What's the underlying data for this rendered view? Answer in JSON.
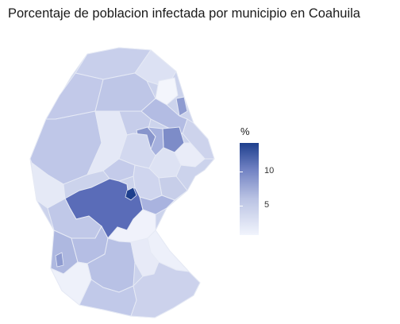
{
  "title": "Porcentaje de poblacion infectada por municipio en Coahuila",
  "legend": {
    "title": "%",
    "ticks": [
      {
        "label": "10",
        "value": 10
      },
      {
        "label": "5",
        "value": 5
      }
    ],
    "range": [
      0,
      14.5
    ]
  },
  "colors": {
    "low": "#f1f4fc",
    "mid": "#b9c2e3",
    "high": "#1e3f8d",
    "border": "#e3e7f3"
  }
}
